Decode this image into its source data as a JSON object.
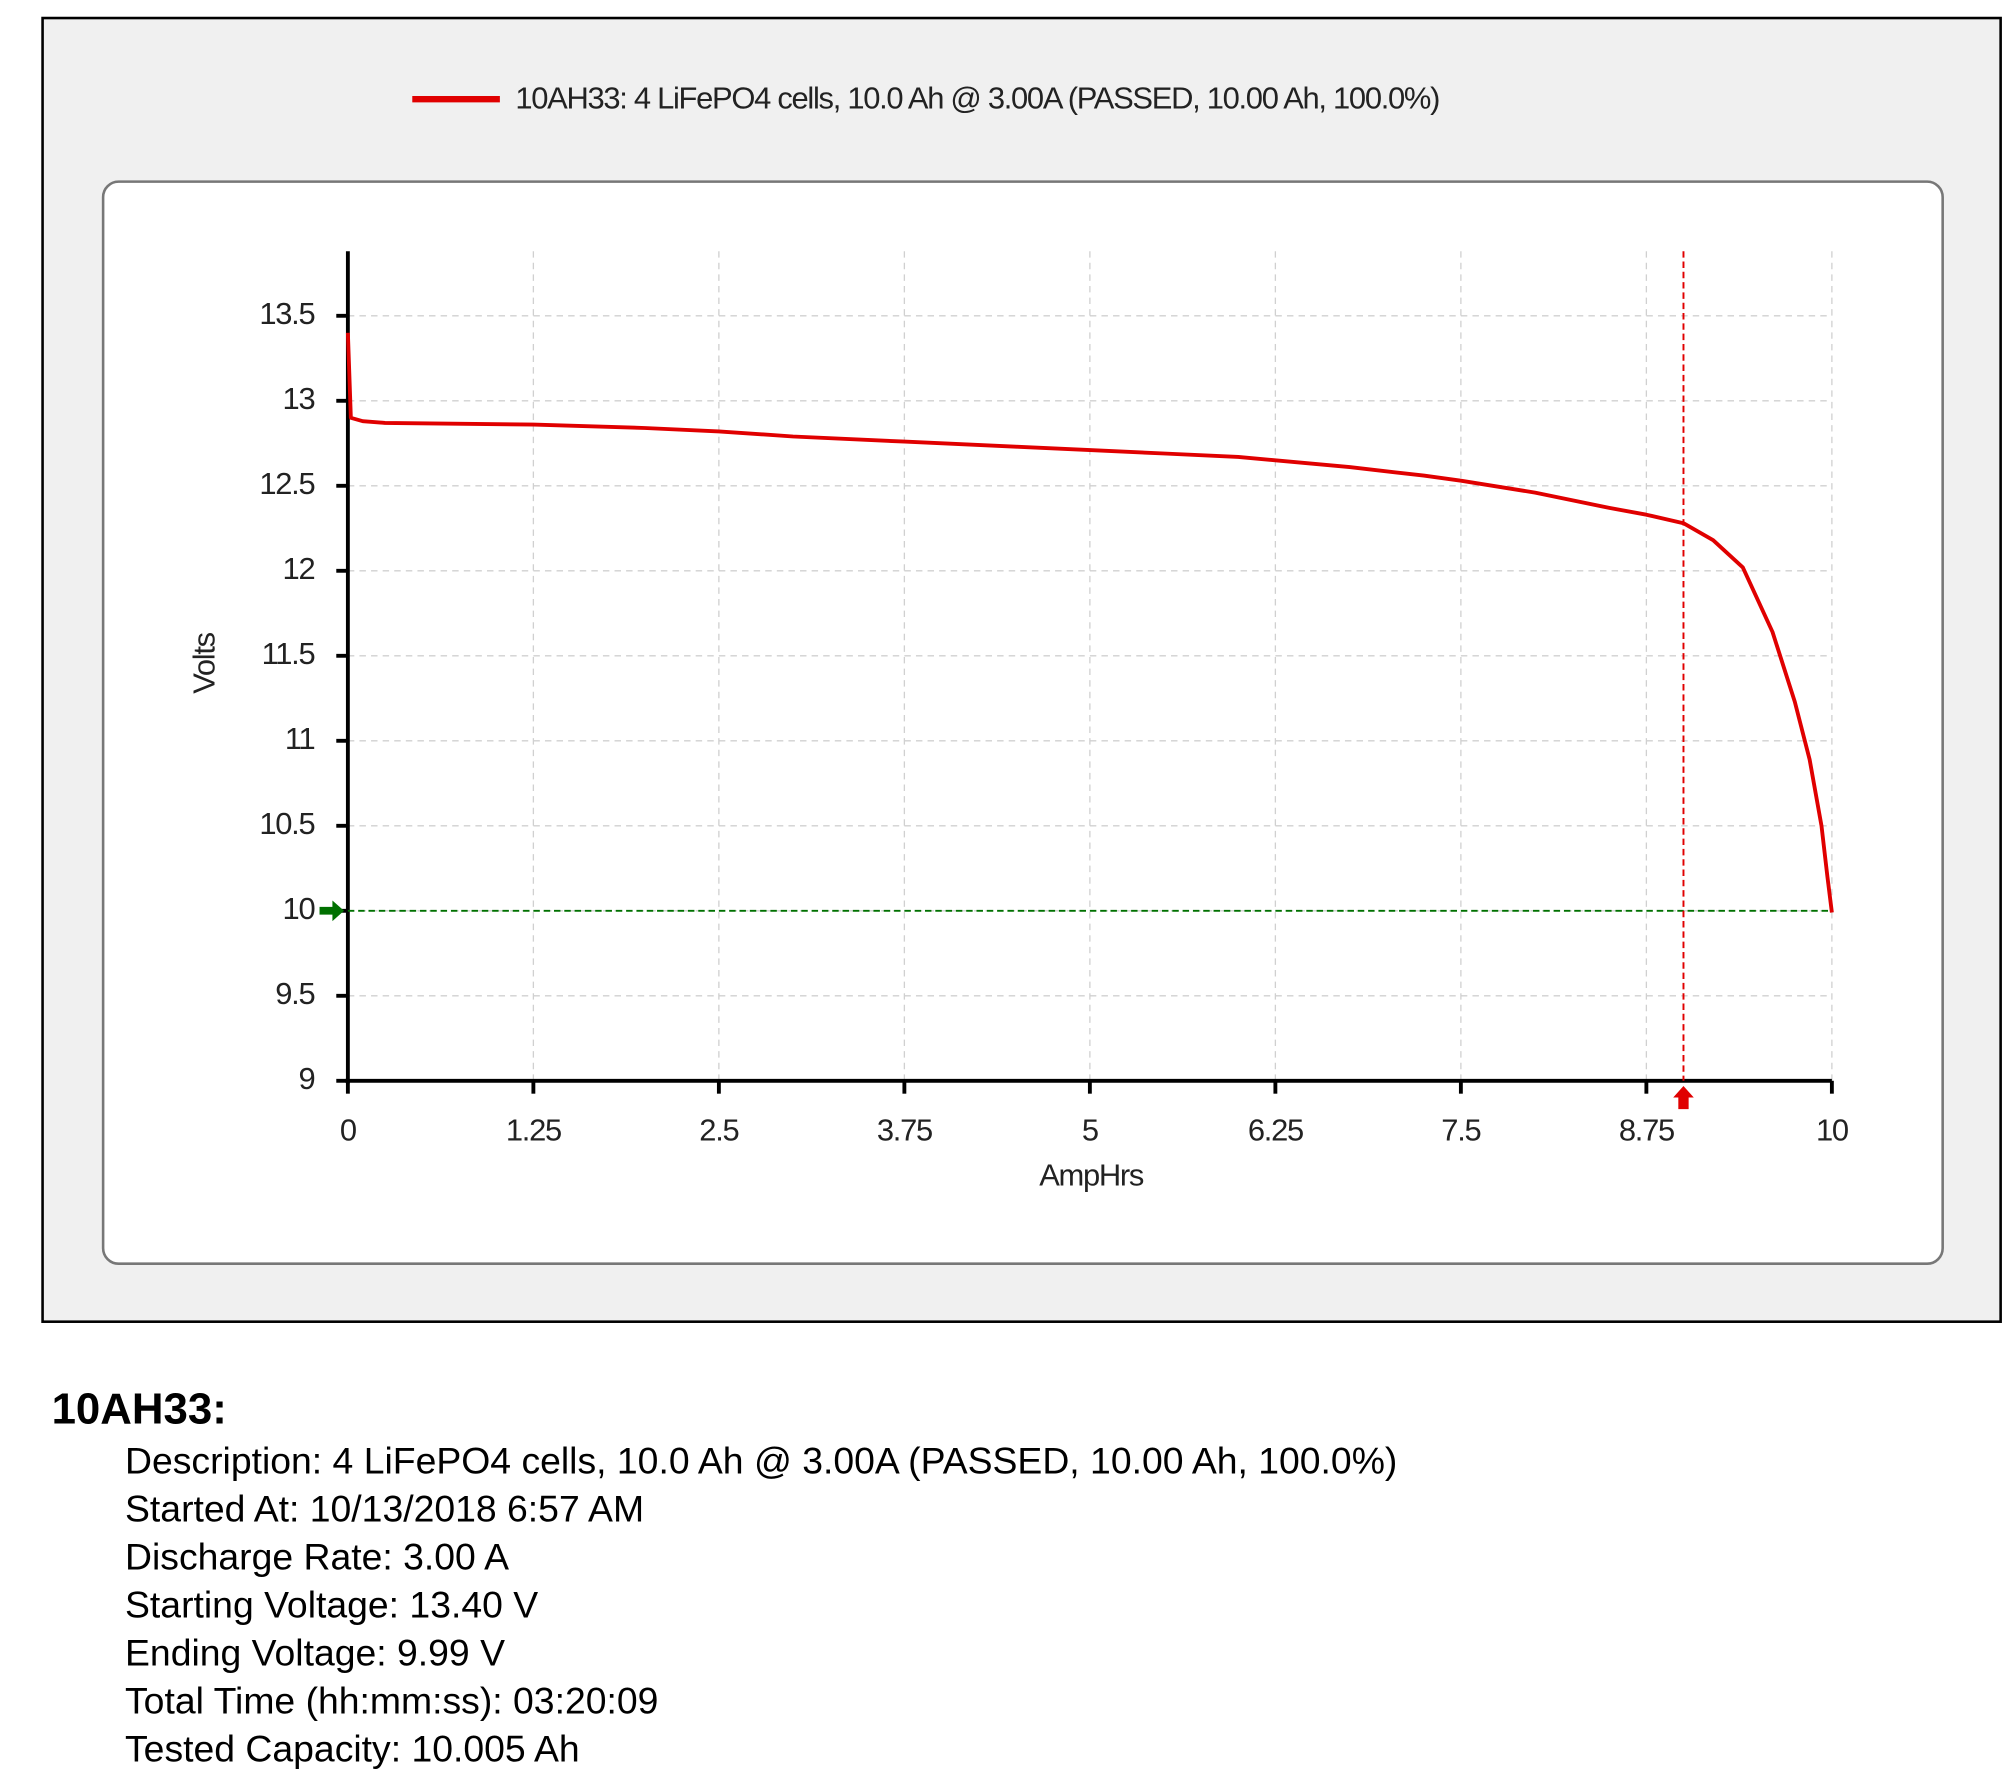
{
  "chart_data": {
    "type": "line",
    "x_label": "AmpHrs",
    "y_label": "Volts",
    "x": [
      0,
      0.02,
      0.1,
      0.25,
      1.25,
      2.0,
      2.5,
      3.0,
      3.75,
      4.5,
      5.0,
      5.5,
      6.0,
      6.25,
      6.75,
      7.25,
      7.5,
      8.0,
      8.5,
      8.75,
      9.0,
      9.2,
      9.4,
      9.6,
      9.75,
      9.85,
      9.93,
      9.97,
      10.0
    ],
    "series": [
      {
        "name": "10AH33: 4 LiFePO4 cells, 10.0 Ah @ 3.00A (PASSED, 10.00 Ah, 100.0%)",
        "color": "#e00000",
        "values": [
          13.4,
          12.9,
          12.88,
          12.87,
          12.86,
          12.84,
          12.82,
          12.79,
          12.76,
          12.73,
          12.71,
          12.69,
          12.67,
          12.65,
          12.61,
          12.56,
          12.53,
          12.46,
          12.37,
          12.33,
          12.28,
          12.18,
          12.02,
          11.64,
          11.23,
          10.89,
          10.5,
          10.2,
          9.99
        ]
      }
    ],
    "xlim": [
      0,
      10
    ],
    "xticks": [
      0,
      1.25,
      2.5,
      3.75,
      5,
      6.25,
      7.5,
      8.75,
      10
    ],
    "ylim": [
      9,
      13.88
    ],
    "yticks": [
      9,
      9.5,
      10,
      10.5,
      11,
      11.5,
      12,
      12.5,
      13,
      13.5
    ],
    "grid": true,
    "reference_lines": [
      {
        "axis": "y",
        "value": 10,
        "color": "#007000"
      },
      {
        "axis": "x",
        "value": 9.0,
        "color": "#e00000"
      }
    ]
  },
  "details": {
    "title": "10AH33:",
    "lines": [
      "Description: 4 LiFePO4 cells, 10.0 Ah @ 3.00A (PASSED, 10.00 Ah, 100.0%)",
      "Started At: 10/13/2018 6:57 AM",
      "Discharge Rate: 3.00 A",
      "Starting Voltage: 13.40 V",
      "Ending Voltage: 9.99 V",
      "Total Time (hh:mm:ss): 03:20:09",
      "Tested Capacity: 10.005 Ah"
    ]
  }
}
